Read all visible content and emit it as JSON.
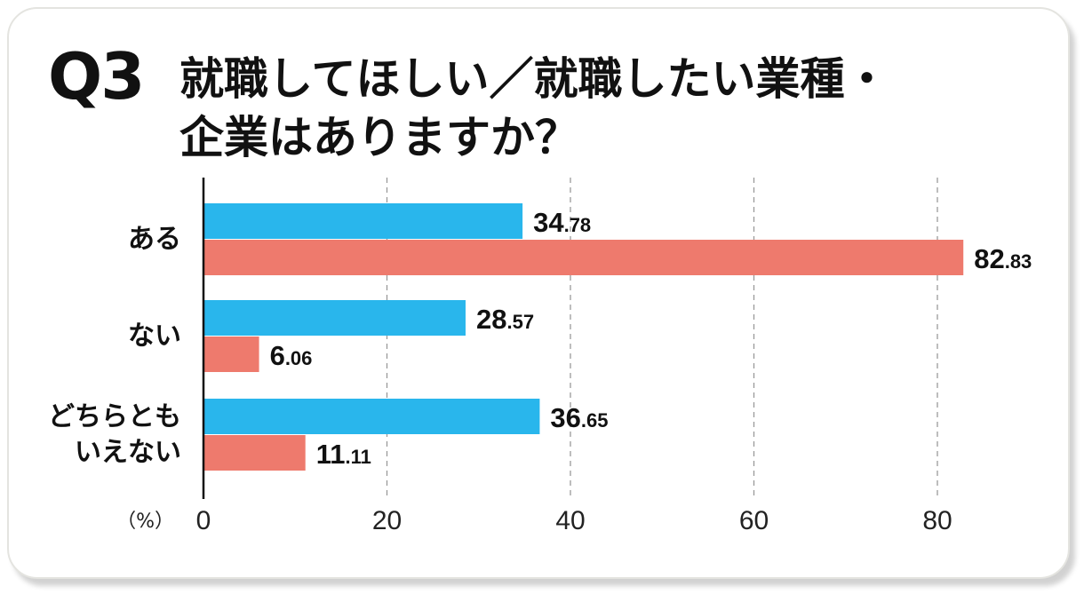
{
  "chart_data": {
    "type": "bar",
    "orientation": "horizontal",
    "title_prefix": "Q3",
    "title": "就職してほしい／就職したい業種・\n企業はありますか？",
    "categories": [
      "ある",
      "ない",
      "どちらとも\nいえない"
    ],
    "series": [
      {
        "name": "series-blue",
        "color": "#29b6ec",
        "values": [
          34.78,
          28.57,
          36.65
        ],
        "labels": [
          "34.78",
          "28.57",
          "36.65"
        ]
      },
      {
        "name": "series-red",
        "color": "#ee7a6d",
        "values": [
          82.83,
          6.06,
          11.11
        ],
        "labels": [
          "82.83",
          "6.06",
          "11.11"
        ]
      }
    ],
    "xlabel": "（%）",
    "xlim": [
      0,
      80
    ],
    "xticks": [
      "0",
      "20",
      "40",
      "60",
      "80"
    ],
    "grid": "vertical-dashed"
  }
}
